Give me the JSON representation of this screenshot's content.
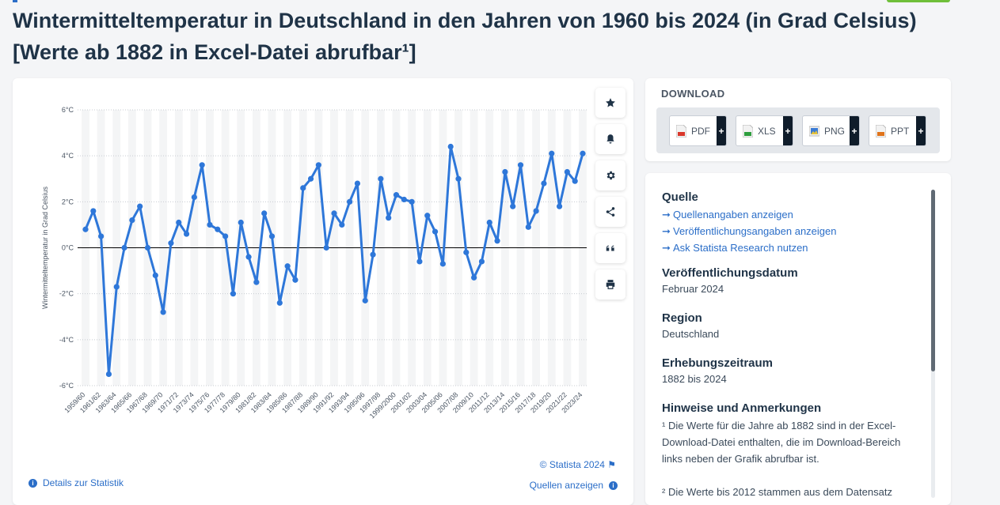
{
  "title": "Wintermitteltemperatur in Deutschland in den Jahren von 1960 bis 2024 (in Grad Celsius) [Werte ab 1882 in Excel-Datei abrufbar¹]",
  "chart_data": {
    "type": "line",
    "ylabel": "Wintermitteltemperatur in Grad Celsius",
    "ylim": [
      -6,
      6
    ],
    "yticks": [
      6,
      4,
      2,
      0,
      -2,
      -4,
      -6
    ],
    "ytick_labels": [
      "6°C",
      "4°C",
      "2°C",
      "0°C",
      "-2°C",
      "-4°C",
      "-6°C"
    ],
    "color": "#2e77d9",
    "categories": [
      "1959/60",
      "1960/61",
      "1961/62",
      "1962/63",
      "1963/64",
      "1964/65",
      "1965/66",
      "1966/67",
      "1967/68",
      "1968/69",
      "1969/70",
      "1970/71",
      "1971/72",
      "1972/73",
      "1973/74",
      "1974/75",
      "1975/76",
      "1976/77",
      "1977/78",
      "1978/79",
      "1979/80",
      "1980/81",
      "1981/82",
      "1982/83",
      "1983/84",
      "1984/85",
      "1985/86",
      "1986/87",
      "1987/88",
      "1988/89",
      "1989/90",
      "1990/91",
      "1991/92",
      "1992/93",
      "1993/94",
      "1994/95",
      "1995/96",
      "1996/97",
      "1997/98",
      "1998/99",
      "1999/2000",
      "2000/01",
      "2001/02",
      "2002/03",
      "2003/04",
      "2004/05",
      "2005/06",
      "2006/07",
      "2007/08",
      "2008/09",
      "2009/10",
      "2010/11",
      "2011/12",
      "2012/13",
      "2013/14",
      "2014/15",
      "2015/16",
      "2016/17",
      "2017/18",
      "2018/19",
      "2019/20",
      "2020/21",
      "2021/22",
      "2022/23",
      "2023/24"
    ],
    "values": [
      0.8,
      1.6,
      0.5,
      -5.5,
      -1.7,
      0.0,
      1.2,
      1.8,
      0.0,
      -1.2,
      -2.8,
      0.2,
      1.1,
      0.6,
      2.2,
      3.6,
      1.0,
      0.8,
      0.5,
      -2.0,
      1.1,
      -0.4,
      -1.5,
      1.5,
      0.5,
      -2.4,
      -0.8,
      -1.4,
      2.6,
      3.0,
      3.6,
      0.0,
      1.5,
      1.0,
      2.0,
      2.8,
      -2.3,
      -0.3,
      3.0,
      1.3,
      2.3,
      2.1,
      2.0,
      -0.6,
      1.4,
      0.7,
      -0.7,
      4.4,
      3.0,
      -0.2,
      -1.3,
      -0.6,
      1.1,
      0.3,
      3.3,
      1.8,
      3.6,
      0.9,
      1.6,
      2.8,
      4.1,
      1.8,
      3.3,
      2.9,
      4.1
    ],
    "shown_xtick_labels": [
      "1959/60",
      "1961/62",
      "1963/64",
      "1965/66",
      "1967/68",
      "1969/70",
      "1971/72",
      "1973/74",
      "1975/76",
      "1977/78",
      "1979/80",
      "1981/82",
      "1983/84",
      "1985/86",
      "1987/88",
      "1989/90",
      "1991/92",
      "1993/94",
      "1995/96",
      "1997/98",
      "1999/2000",
      "2001/02",
      "2003/04",
      "2005/06",
      "2007/08",
      "2009/10",
      "2011/12",
      "2013/14",
      "2015/16",
      "2017/18",
      "2019/20",
      "2021/22",
      "2023/24"
    ]
  },
  "chart_footer": {
    "credit": "© Statista 2024",
    "details_link": "Details zur Statistik",
    "sources_link": "Quellen anzeigen"
  },
  "tools": [
    "star-icon",
    "bell-icon",
    "gear-icon",
    "share-icon",
    "quote-icon",
    "print-icon"
  ],
  "download": {
    "title": "DOWNLOAD",
    "buttons": [
      {
        "label": "PDF",
        "icon": "pdf-file-icon",
        "color": "#d9372b"
      },
      {
        "label": "XLS",
        "icon": "xls-file-icon",
        "color": "#2e9e3e"
      },
      {
        "label": "PNG",
        "icon": "png-file-icon",
        "color": "#3a7bd5"
      },
      {
        "label": "PPT",
        "icon": "ppt-file-icon",
        "color": "#e0731b"
      }
    ],
    "plus": "+"
  },
  "meta": {
    "source_heading": "Quelle",
    "links": [
      "Quellenangaben anzeigen",
      "Veröffentlichungsangaben anzeigen",
      "Ask Statista Research nutzen"
    ],
    "published_heading": "Veröffentlichungsdatum",
    "published_value": "Februar 2024",
    "region_heading": "Region",
    "region_value": "Deutschland",
    "period_heading": "Erhebungszeitraum",
    "period_value": "1882 bis 2024",
    "notes_heading": "Hinweise und Anmerkungen",
    "note1": "¹ Die Werte für die Jahre ab 1882 sind in der Excel-Download-Datei enthalten, die im Download-Bereich links neben der Grafik abrufbar ist.",
    "note2": "² Die Werte bis 2012 stammen aus dem Datensatz"
  }
}
